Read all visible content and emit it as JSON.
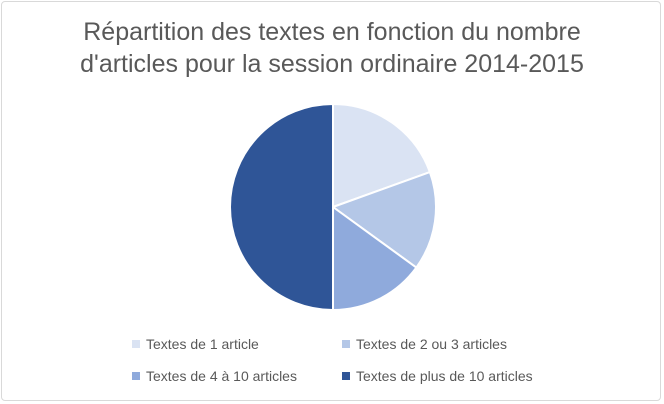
{
  "chart_data": {
    "type": "pie",
    "title": "Répartition des textes en fonction du nombre d'articles pour la session ordinaire 2014-2015",
    "title_lines": [
      "Répartition des textes en fonction du nombre",
      "d'articles pour la session ordinaire 2014-2015"
    ],
    "categories": [
      "Textes de 1 article",
      "Textes de 2 ou 3 articles",
      "Textes de 4 à 10 articles",
      "Textes de plus de 10 articles"
    ],
    "values": [
      19.5,
      15.5,
      15,
      50
    ],
    "colors": [
      "#dae3f3",
      "#b4c7e7",
      "#8faadc",
      "#2f5597"
    ],
    "legend_position": "bottom",
    "start_angle": "12 o'clock",
    "direction": "clockwise"
  }
}
